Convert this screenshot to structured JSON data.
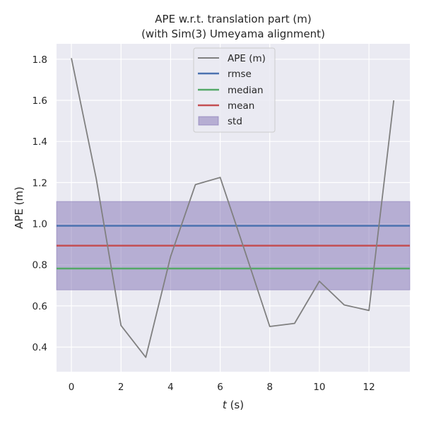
{
  "chart_data": {
    "type": "line",
    "title": "APE w.r.t. translation part (m)",
    "subtitle": "(with Sim(3) Umeyama alignment)",
    "xlabel_var": "t",
    "xlabel_unit": " (s)",
    "ylabel": "APE (m)",
    "xlim": [
      -0.6,
      13.65
    ],
    "ylim": [
      0.28,
      1.875
    ],
    "xticks": [
      "0",
      "2",
      "4",
      "6",
      "8",
      "10",
      "12"
    ],
    "yticks": [
      "0.4",
      "0.6",
      "0.8",
      "1.0",
      "1.2",
      "1.4",
      "1.6",
      "1.8"
    ],
    "grid": true,
    "legend_position": "top-center",
    "series": [
      {
        "name": "APE (m)",
        "color": "#808080",
        "x": [
          0,
          1,
          2,
          3,
          4,
          5,
          6,
          7,
          8,
          9,
          10,
          11,
          12,
          13
        ],
        "y": [
          1.805,
          1.22,
          0.505,
          0.35,
          0.84,
          1.19,
          1.225,
          0.865,
          0.5,
          0.515,
          0.72,
          0.605,
          0.578,
          1.6
        ]
      }
    ],
    "statistics": [
      {
        "name": "rmse",
        "value": 0.99,
        "color": "#4c72b0"
      },
      {
        "name": "median",
        "value": 0.782,
        "color": "#55a868"
      },
      {
        "name": "mean",
        "value": 0.893,
        "color": "#c44e52"
      }
    ],
    "std_band": {
      "name": "std",
      "lower": 0.678,
      "upper": 1.108,
      "color": "#8172b3"
    }
  }
}
